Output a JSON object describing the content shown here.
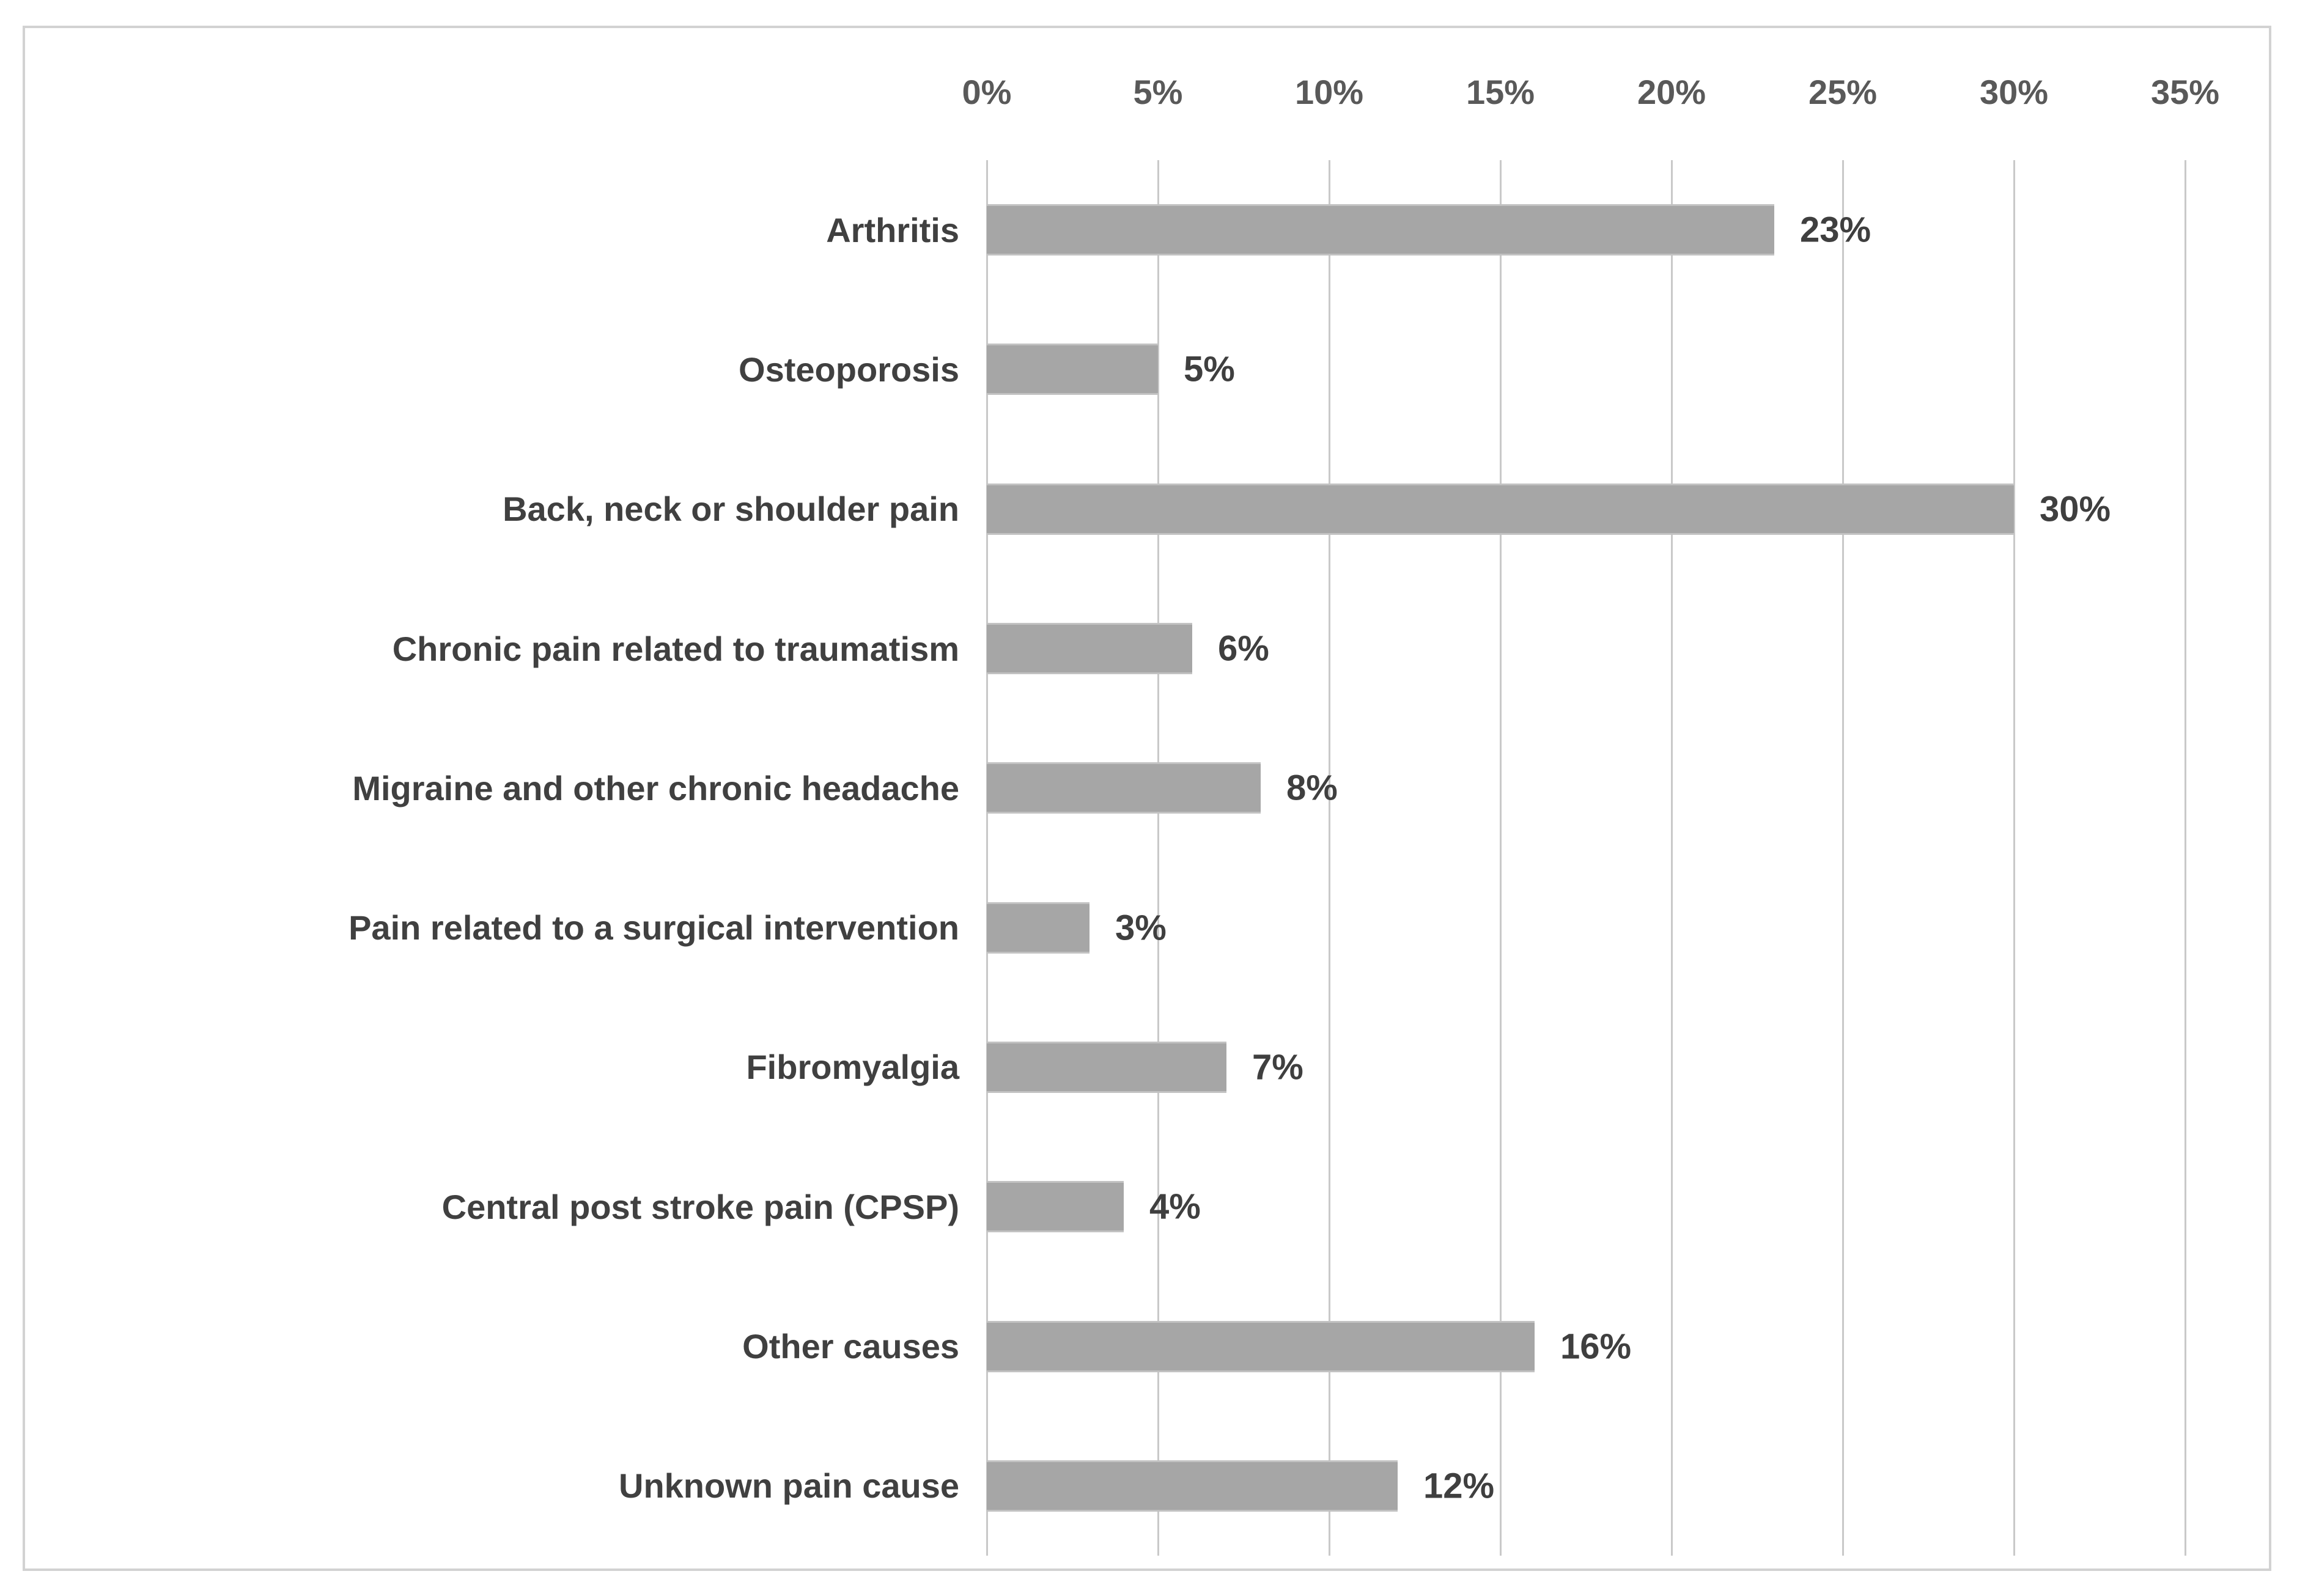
{
  "chart_data": {
    "type": "bar",
    "orientation": "horizontal",
    "title": "",
    "categories": [
      "Arthritis",
      "Osteoporosis",
      "Back, neck or shoulder pain",
      "Chronic pain related to traumatism",
      "Migraine and other chronic headache",
      "Pain related to a surgical intervention",
      "Fibromyalgia",
      "Central post stroke pain (CPSP)",
      "Other causes",
      "Unknown pain cause"
    ],
    "values": [
      23,
      5,
      30,
      6,
      8,
      3,
      7,
      4,
      16,
      12
    ],
    "value_labels": [
      "23%",
      "5%",
      "30%",
      "6%",
      "8%",
      "3%",
      "7%",
      "4%",
      "16%",
      "12%"
    ],
    "x_ticks": [
      "0%",
      "5%",
      "10%",
      "15%",
      "20%",
      "25%",
      "30%",
      "35%"
    ],
    "xlim": [
      0,
      35
    ],
    "gridline_interval": 5,
    "grid": true,
    "legend_position": "none",
    "axis_position": "top",
    "colors": {
      "bar": "#a6a6a6",
      "bar_edge": "#c2c2c2",
      "category_label": "#404040",
      "value_label": "#3f3f3f",
      "tick_label": "#595959",
      "gridline": "#c9c9c9",
      "frame_border": "#d2d2d2",
      "background": "#ffffff"
    }
  }
}
